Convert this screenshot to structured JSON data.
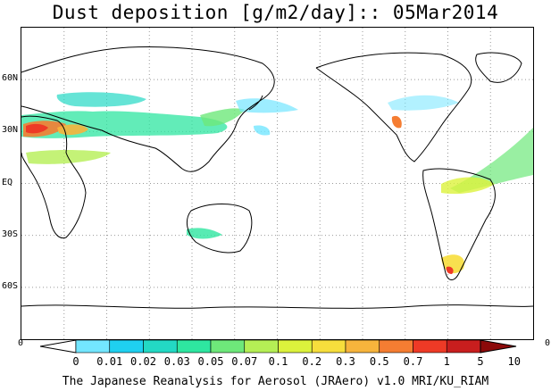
{
  "title": "Dust deposition [g/m2/day]:: 05Mar2014",
  "map": {
    "lat_labels": [
      {
        "label": "60N",
        "lat": 60
      },
      {
        "label": "30N",
        "lat": 30
      },
      {
        "label": "EQ",
        "lat": 0
      },
      {
        "label": "30S",
        "lat": -30
      },
      {
        "label": "60S",
        "lat": -60
      }
    ],
    "lat_range": [
      -90,
      90
    ],
    "lon_range": [
      0,
      360
    ],
    "gridlines": "dotted"
  },
  "colorbar": {
    "end_labels": [
      "0",
      "0"
    ],
    "tick_labels": [
      "0",
      "0.01",
      "0.02",
      "0.03",
      "0.05",
      "0.07",
      "0.1",
      "0.2",
      "0.3",
      "0.5",
      "0.7",
      "1",
      "5",
      "10"
    ],
    "colors": [
      "#ffffff",
      "#73e6ff",
      "#1fd0f0",
      "#23d9c4",
      "#2ee6a0",
      "#6ee87a",
      "#b5ef55",
      "#dcf23c",
      "#f7de3c",
      "#f7b43c",
      "#f57d32",
      "#ee3a26",
      "#c81e1e",
      "#8c0a0a"
    ]
  },
  "footer": "The Japanese Reanalysis for Aerosol (JRAero) v1.0 MRI/KU_RIAM"
}
